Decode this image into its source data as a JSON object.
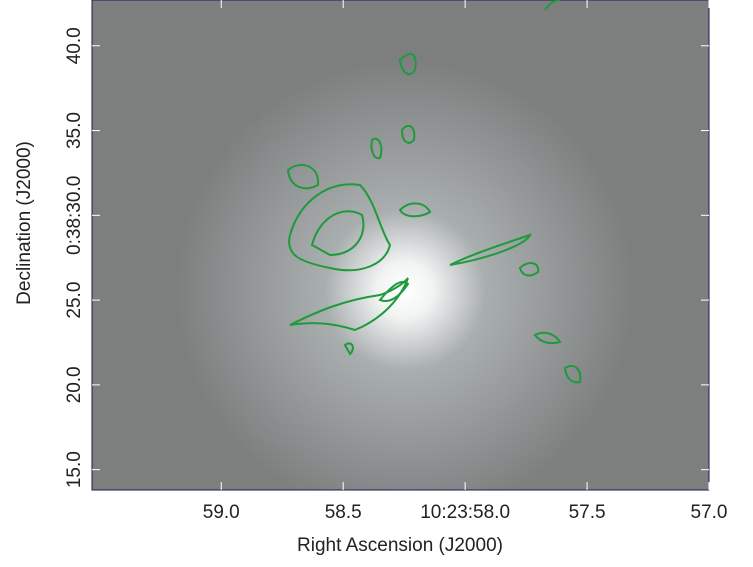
{
  "chart_data": {
    "type": "image",
    "xlabel": "Right Ascension (J2000)",
    "ylabel": "Declination (J2000)",
    "xlim": [
      59.53,
      57.0
    ],
    "ylim": [
      13.8,
      42.7
    ],
    "xticks": [
      {
        "value": 59,
        "label": "59.0"
      },
      {
        "value": 58.5,
        "label": "58.5"
      },
      {
        "value": 58,
        "label": "10:23:58.0"
      },
      {
        "value": 57.5,
        "label": "57.5"
      },
      {
        "value": 57,
        "label": "57.0"
      }
    ],
    "yticks": [
      {
        "value": 15,
        "label": "15.0"
      },
      {
        "value": 20,
        "label": "20.0"
      },
      {
        "value": 25,
        "label": "25.0"
      },
      {
        "value": 30,
        "label": "0:38:30.0"
      },
      {
        "value": 35,
        "label": "35.0"
      },
      {
        "value": 40,
        "label": "40.0"
      }
    ],
    "contour_color": "#1f9a3c"
  }
}
